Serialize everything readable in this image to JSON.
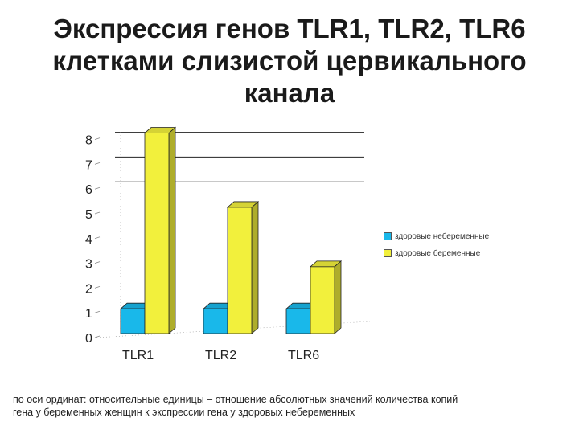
{
  "title": {
    "line1": "Экспрессия генов TLR1, TLR2, TLR6",
    "line2": "клетками слизистой цервикального",
    "line3": "канала"
  },
  "footnote": {
    "line1": "по оси ординат:  относительные единицы – отношение абсолютных значений количества копий",
    "line2": "гена  у беременных женщин к экспрессии гена у здоровых небеременных"
  },
  "legend": {
    "items": [
      {
        "label": "здоровые небеременные",
        "color": "#19B8EA"
      },
      {
        "label": "здоровые беременные",
        "color": "#F2F03C"
      }
    ]
  },
  "chart_data": {
    "type": "bar",
    "categories": [
      "TLR1",
      "TLR2",
      "TLR6"
    ],
    "series": [
      {
        "name": "здоровые небеременные",
        "values": [
          1,
          1,
          1
        ],
        "color": "#19B8EA"
      },
      {
        "name": "здоровые беременные",
        "values": [
          8.1,
          5.1,
          2.7
        ],
        "color": "#F2F03C"
      }
    ],
    "ylim": [
      0,
      8
    ],
    "yticks": [
      "0",
      "1",
      "2",
      "3",
      "4",
      "5",
      "6",
      "7",
      "8"
    ],
    "gridlines_at": [
      6,
      7,
      8
    ],
    "style": "3d",
    "legend_position": "right"
  }
}
